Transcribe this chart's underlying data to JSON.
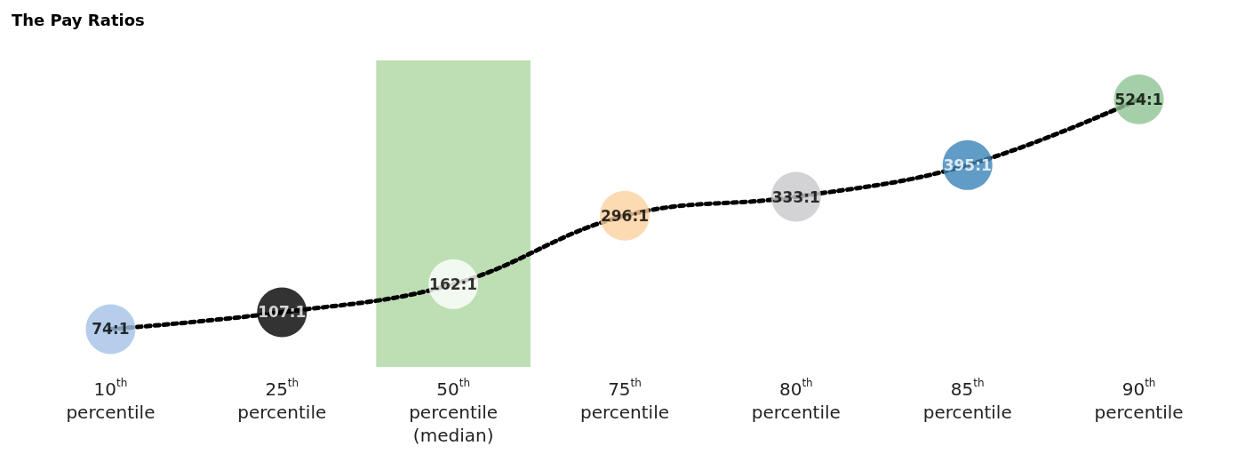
{
  "chart_data": {
    "type": "line",
    "title": "The Pay Ratios",
    "categories": [
      "10$^{th}$ percentile",
      "25$^{th}$ percentile",
      "50$^{th}$ percentile (median)",
      "75$^{th}$ percentile",
      "80$^{th}$ percentile",
      "85$^{th}$ percentile",
      "90$^{th}$ percentile"
    ],
    "series": [
      {
        "color": "#000000",
        "values": [
          74,
          107,
          162,
          296,
          333,
          395,
          524
        ],
        "marker": "none",
        "line_style": "dotted"
      },
      {
        "type": "scatter",
        "marker": "circle",
        "x": [
          "10$^{th}$ percentile",
          "25$^{th}$ percentile",
          "50$^{th}$ percentile (median)",
          "75$^{th}$ percentile",
          "80$^{th}$ percentile",
          "85$^{th}$ percentile",
          "90$^{th}$ percentile"
        ],
        "values": [
          74,
          107,
          162,
          296,
          333,
          395,
          524
        ],
        "colors": [
          "#a4c2e6",
          "#000000",
          "#ffffff",
          "#fcd29f",
          "#c8c8ca",
          "#3a83b8",
          "#8ec392"
        ],
        "value_labels": [
          "74:1",
          "107:1",
          "162:1",
          "296:1",
          "333:1",
          "395:1",
          "524:1"
        ]
      }
    ],
    "grid": false,
    "bands": [
      {
        "axis": "x",
        "from": "50$^{th}$ percentile (median)",
        "to": "50$^{th}$ percentile (median)",
        "color": "#bddfb3"
      }
    ]
  }
}
